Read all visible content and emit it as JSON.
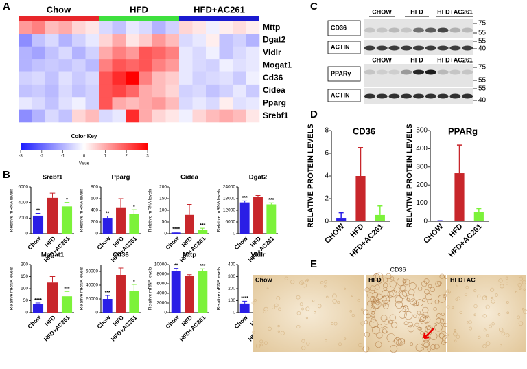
{
  "panel_labels": [
    "A",
    "B",
    "C",
    "D",
    "E"
  ],
  "heatmap": {
    "groups": [
      {
        "name": "Chow",
        "color": "#e8262a"
      },
      {
        "name": "HFD",
        "color": "#3ee03e"
      },
      {
        "name": "HFD+AC261",
        "color": "#1a1ad0"
      }
    ],
    "rows": [
      "Mttp",
      "Dgat2",
      "Vldlr",
      "Mogat1",
      "Cd36",
      "Cidea",
      "Pparg",
      "Srebf1"
    ],
    "values": [
      [
        1.2,
        1.5,
        0.8,
        1,
        0.5,
        0.3,
        -0.5,
        -0.8,
        -0.3,
        -0.5,
        -1,
        -0.6,
        0.5,
        0.3,
        -0.2,
        0.2,
        0.4,
        0.2
      ],
      [
        -1.5,
        -0.8,
        -0.5,
        -1,
        -0.6,
        -0.3,
        0.5,
        1,
        0.3,
        0.6,
        1.2,
        0.8,
        -0.5,
        -0.3,
        0.2,
        -0.8,
        -0.6,
        -1
      ],
      [
        -1,
        -1.2,
        -0.8,
        -0.5,
        -1,
        -0.6,
        1,
        1.5,
        1.2,
        2,
        1.8,
        1.5,
        -0.3,
        -0.5,
        -0.2,
        -0.8,
        -0.5,
        -0.3
      ],
      [
        -1,
        -0.8,
        -0.7,
        -0.8,
        -0.6,
        -0.9,
        1.5,
        2,
        1.8,
        2,
        1.5,
        1.2,
        -0.3,
        -0.5,
        -0.6,
        -0.2,
        -0.4,
        -0.3
      ],
      [
        -0.6,
        -0.5,
        -0.8,
        -0.4,
        -0.7,
        -0.5,
        2,
        2.5,
        3,
        1.5,
        0.8,
        0.6,
        -0.3,
        -0.6,
        -0.5,
        -0.4,
        -0.7,
        -0.2
      ],
      [
        -0.8,
        -0.7,
        -0.9,
        -0.5,
        -0.8,
        -0.6,
        2,
        2.2,
        1.8,
        1,
        0.8,
        0.5,
        -0.6,
        -0.5,
        -0.8,
        -0.6,
        -0.3,
        -0.7
      ],
      [
        -0.3,
        -0.5,
        -0.8,
        -0.4,
        -0.2,
        -0.6,
        2,
        1,
        0.8,
        1,
        1.2,
        0.8,
        -0.5,
        -0.3,
        -0.5,
        0.2,
        -0.4,
        -0.3
      ],
      [
        -1.5,
        -1,
        -0.5,
        -0.8,
        0.5,
        0.8,
        -0.5,
        -0.3,
        2.5,
        1,
        0.5,
        0.3,
        -0.2,
        0.5,
        0.8,
        1,
        0.8,
        0.3
      ]
    ],
    "color_key": {
      "title": "Color Key",
      "label": "Value",
      "ticks": [
        -3,
        -2,
        -1,
        0,
        1,
        2,
        3
      ],
      "colors": [
        "#1a1aff",
        "#ffffff",
        "#ff0000"
      ]
    }
  },
  "chart_data": [
    {
      "type": "bar",
      "title": "Srebf1",
      "y_label": "Relative mRNA levels",
      "categories": [
        "Chow",
        "HFD",
        "HFD+AC261"
      ],
      "values": [
        2300,
        4600,
        3500
      ],
      "errors": [
        300,
        600,
        500
      ],
      "colors": [
        "#2a1ee6",
        "#c8262b",
        "#7cf23a"
      ],
      "annotations": [
        "**",
        null,
        "*"
      ],
      "ylim": [
        0,
        6000
      ],
      "yticks": [
        0,
        2000,
        4000,
        6000
      ]
    },
    {
      "type": "bar",
      "title": "Pparg",
      "y_label": "Relative mRNA levels",
      "categories": [
        "Chow",
        "HFD",
        "HFD+AC261"
      ],
      "values": [
        270,
        450,
        330
      ],
      "errors": [
        30,
        150,
        80
      ],
      "colors": [
        "#2a1ee6",
        "#c8262b",
        "#7cf23a"
      ],
      "annotations": [
        "**",
        null,
        "*"
      ],
      "ylim": [
        0,
        800
      ],
      "yticks": [
        0,
        200,
        400,
        600,
        800
      ]
    },
    {
      "type": "bar",
      "title": "Cidea",
      "y_label": "Relative mRNA levels",
      "categories": [
        "Chow",
        "HFD",
        "HFD+AC261"
      ],
      "values": [
        5,
        80,
        15
      ],
      "errors": [
        2,
        45,
        8
      ],
      "colors": [
        "#2a1ee6",
        "#c8262b",
        "#7cf23a"
      ],
      "annotations": [
        "****",
        null,
        "***"
      ],
      "ylim": [
        0,
        200
      ],
      "yticks": [
        0,
        50,
        100,
        150,
        200
      ]
    },
    {
      "type": "bar",
      "title": "Dgat2",
      "y_label": "Relative mRNA levels",
      "categories": [
        "Chow",
        "HFD",
        "HFD+AC261"
      ],
      "values": [
        16000,
        19000,
        15000
      ],
      "errors": [
        800,
        600,
        800
      ],
      "colors": [
        "#2a1ee6",
        "#c8262b",
        "#7cf23a"
      ],
      "annotations": [
        "***",
        null,
        "***"
      ],
      "ylim": [
        0,
        24000
      ],
      "yticks": [
        0,
        6000,
        12000,
        18000,
        24000
      ]
    },
    {
      "type": "bar",
      "title": "Mogat1",
      "y_label": "Relative mRNA levels",
      "categories": [
        "Chow",
        "HFD",
        "HFD+AC261"
      ],
      "values": [
        37,
        125,
        68
      ],
      "errors": [
        3,
        25,
        20
      ],
      "colors": [
        "#2a1ee6",
        "#c8262b",
        "#7cf23a"
      ],
      "annotations": [
        "****",
        null,
        "***"
      ],
      "ylim": [
        0,
        200
      ],
      "yticks": [
        0,
        50,
        100,
        150,
        200
      ]
    },
    {
      "type": "bar",
      "title": "Cd36",
      "y_label": "Relative mRNA levels",
      "categories": [
        "Chow",
        "HFD",
        "HFD+AC261"
      ],
      "values": [
        20000,
        55000,
        31000
      ],
      "errors": [
        5000,
        10000,
        10000
      ],
      "colors": [
        "#2a1ee6",
        "#c8262b",
        "#7cf23a"
      ],
      "annotations": [
        "***",
        null,
        "*"
      ],
      "ylim": [
        0,
        70000
      ],
      "yticks": [
        0,
        20000,
        40000,
        60000
      ]
    },
    {
      "type": "bar",
      "title": "Mttp",
      "y_label": "Relative mRNA levels",
      "categories": [
        "Chow",
        "HFD",
        "HFD+AC261"
      ],
      "values": [
        8600,
        7600,
        8700
      ],
      "errors": [
        600,
        300,
        400
      ],
      "colors": [
        "#2a1ee6",
        "#c8262b",
        "#7cf23a"
      ],
      "annotations": [
        "**",
        null,
        "***"
      ],
      "ylim": [
        0,
        10000
      ],
      "yticks": [
        0,
        2000,
        4000,
        6000,
        8000,
        10000
      ]
    },
    {
      "type": "bar",
      "title": "Vldlr",
      "y_label": "Relative mRNA levels",
      "categories": [
        "Chow",
        "HFD",
        "HFD+AC261"
      ],
      "values": [
        75,
        215,
        118
      ],
      "errors": [
        20,
        60,
        35
      ],
      "colors": [
        "#2a1ee6",
        "#c8262b",
        "#7cf23a"
      ],
      "annotations": [
        "****",
        null,
        "**"
      ],
      "ylim": [
        0,
        400
      ],
      "yticks": [
        0,
        100,
        200,
        300,
        400
      ]
    },
    {
      "type": "bar",
      "title": "CD36",
      "y_label": "RELATIVE PROTEIN LEVELS",
      "categories": [
        "CHOW",
        "HFD",
        "HFD+AC261"
      ],
      "values": [
        0.3,
        4.0,
        0.55
      ],
      "errors": [
        0.45,
        2.5,
        0.8
      ],
      "colors": [
        "#2a1ee6",
        "#c8262b",
        "#7cf23a"
      ],
      "ylim": [
        0,
        8
      ],
      "yticks": [
        0,
        2,
        4,
        6,
        8
      ]
    },
    {
      "type": "bar",
      "title": "PPARg",
      "y_label": "RELATIVE PROTEIN LEVELS",
      "categories": [
        "CHOW",
        "HFD",
        "HFD+AC261"
      ],
      "values": [
        2,
        265,
        50
      ],
      "errors": [
        1,
        155,
        20
      ],
      "colors": [
        "#2a1ee6",
        "#c8262b",
        "#7cf23a"
      ],
      "ylim": [
        0,
        500
      ],
      "yticks": [
        0,
        100,
        200,
        300,
        400,
        500
      ]
    }
  ],
  "blots": [
    {
      "headers": [
        "CHOW",
        "HFD",
        "HFD+AC261"
      ],
      "rows": [
        {
          "label": "CD36",
          "markers": [
            75,
            55
          ]
        },
        {
          "label": "ACTIN",
          "markers": [
            55,
            40
          ]
        }
      ]
    },
    {
      "headers": [
        "CHOW",
        "HFD",
        "HFD+AC261"
      ],
      "rows": [
        {
          "label": "PPARγ",
          "markers": [
            75,
            55
          ]
        },
        {
          "label": "ACTIN",
          "markers": [
            55,
            40
          ]
        }
      ]
    }
  ],
  "histology": {
    "title": "CD36",
    "images": [
      "Chow",
      "HFD",
      "HFD+AC"
    ]
  }
}
